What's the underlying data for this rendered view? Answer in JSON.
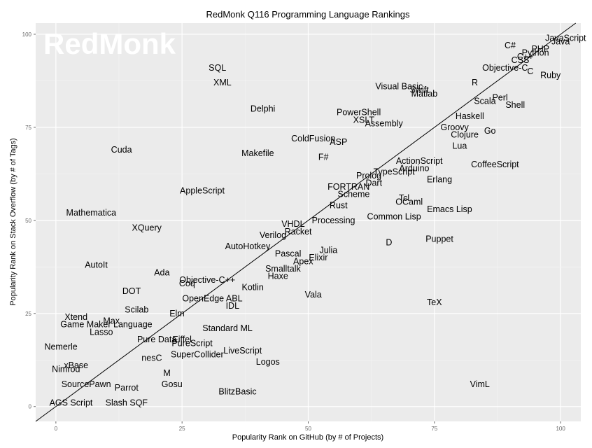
{
  "chart_data": {
    "type": "scatter",
    "title": "RedMonk Q116 Programming Language Rankings",
    "xlabel": "Popularity Rank on GitHub (by # of Projects)",
    "ylabel": "Popularity Rank on Stack Overflow (by # of Tags)",
    "watermark": "RedMonk",
    "xlim": [
      -4,
      104
    ],
    "ylim": [
      -4,
      103
    ],
    "xticks": [
      0,
      25,
      50,
      75,
      100
    ],
    "yticks": [
      0,
      25,
      50,
      75,
      100
    ],
    "xtick_labels": [
      "0",
      "25",
      "50",
      "75",
      "100"
    ],
    "ytick_labels": [
      "0",
      "25",
      "50",
      "75",
      "100"
    ],
    "grid": true,
    "reference_line": "diagonal",
    "colors": {
      "panel": "#ebebeb",
      "grid": "#ffffff",
      "text": "#000000",
      "tick": "#666666"
    },
    "points": [
      {
        "label": "JavaScript",
        "x": 101,
        "y": 99
      },
      {
        "label": "Java",
        "x": 100,
        "y": 98
      },
      {
        "label": "PHP",
        "x": 96,
        "y": 96
      },
      {
        "label": "Python",
        "x": 95,
        "y": 95
      },
      {
        "label": "C#",
        "x": 90,
        "y": 97
      },
      {
        "label": "C++",
        "x": 93,
        "y": 94
      },
      {
        "label": "CSS",
        "x": 92,
        "y": 93
      },
      {
        "label": "Objective-C",
        "x": 89,
        "y": 91
      },
      {
        "label": "C",
        "x": 94,
        "y": 90
      },
      {
        "label": "Ruby",
        "x": 98,
        "y": 89
      },
      {
        "label": "R",
        "x": 83,
        "y": 87
      },
      {
        "label": "Visual Basic",
        "x": 68,
        "y": 86
      },
      {
        "label": "Swift",
        "x": 72,
        "y": 85
      },
      {
        "label": "Matlab",
        "x": 73,
        "y": 84
      },
      {
        "label": "Perl",
        "x": 88,
        "y": 83
      },
      {
        "label": "Scala",
        "x": 85,
        "y": 82
      },
      {
        "label": "Shell",
        "x": 91,
        "y": 81
      },
      {
        "label": "SQL",
        "x": 32,
        "y": 91
      },
      {
        "label": "XML",
        "x": 33,
        "y": 87
      },
      {
        "label": "Delphi",
        "x": 41,
        "y": 80
      },
      {
        "label": "PowerShell",
        "x": 60,
        "y": 79
      },
      {
        "label": "Haskell",
        "x": 82,
        "y": 78
      },
      {
        "label": "XSLT",
        "x": 61,
        "y": 77
      },
      {
        "label": "Assembly",
        "x": 65,
        "y": 76
      },
      {
        "label": "Groovy",
        "x": 79,
        "y": 75
      },
      {
        "label": "Go",
        "x": 86,
        "y": 74
      },
      {
        "label": "Clojure",
        "x": 81,
        "y": 73
      },
      {
        "label": "ColdFusion",
        "x": 51,
        "y": 72
      },
      {
        "label": "ASP",
        "x": 56,
        "y": 71
      },
      {
        "label": "Lua",
        "x": 80,
        "y": 70
      },
      {
        "label": "Cuda",
        "x": 13,
        "y": 69
      },
      {
        "label": "Makefile",
        "x": 40,
        "y": 68
      },
      {
        "label": "F#",
        "x": 53,
        "y": 67
      },
      {
        "label": "ActionScript",
        "x": 72,
        "y": 66
      },
      {
        "label": "CoffeeScript",
        "x": 87,
        "y": 65
      },
      {
        "label": "Arduino",
        "x": 71,
        "y": 64
      },
      {
        "label": "TypeScript",
        "x": 67,
        "y": 63
      },
      {
        "label": "Prolog",
        "x": 62,
        "y": 62
      },
      {
        "label": "Erlang",
        "x": 76,
        "y": 61
      },
      {
        "label": "Dart",
        "x": 63,
        "y": 60
      },
      {
        "label": "FORTRAN",
        "x": 58,
        "y": 59
      },
      {
        "label": "AppleScript",
        "x": 29,
        "y": 58
      },
      {
        "label": "Scheme",
        "x": 59,
        "y": 57
      },
      {
        "label": "Tcl",
        "x": 69,
        "y": 56
      },
      {
        "label": "OCaml",
        "x": 70,
        "y": 55
      },
      {
        "label": "Rust",
        "x": 56,
        "y": 54
      },
      {
        "label": "Emacs Lisp",
        "x": 78,
        "y": 53
      },
      {
        "label": "Mathematica",
        "x": 7,
        "y": 52
      },
      {
        "label": "Common Lisp",
        "x": 67,
        "y": 51
      },
      {
        "label": "Processing",
        "x": 55,
        "y": 50
      },
      {
        "label": "VHDL",
        "x": 47,
        "y": 49
      },
      {
        "label": "XQuery",
        "x": 18,
        "y": 48
      },
      {
        "label": "Racket",
        "x": 48,
        "y": 47
      },
      {
        "label": "Verilog",
        "x": 43,
        "y": 46
      },
      {
        "label": "Puppet",
        "x": 76,
        "y": 45
      },
      {
        "label": "D",
        "x": 66,
        "y": 44
      },
      {
        "label": "AutoHotkey",
        "x": 38,
        "y": 43
      },
      {
        "label": "Julia",
        "x": 54,
        "y": 42
      },
      {
        "label": "Pascal",
        "x": 46,
        "y": 41
      },
      {
        "label": "Elixir",
        "x": 52,
        "y": 40
      },
      {
        "label": "Apex",
        "x": 49,
        "y": 39
      },
      {
        "label": "AutoIt",
        "x": 8,
        "y": 38
      },
      {
        "label": "Smalltalk",
        "x": 45,
        "y": 37
      },
      {
        "label": "Ada",
        "x": 21,
        "y": 36
      },
      {
        "label": "Haxe",
        "x": 44,
        "y": 35
      },
      {
        "label": "Objective-C++",
        "x": 30,
        "y": 34
      },
      {
        "label": "Coq",
        "x": 26,
        "y": 33
      },
      {
        "label": "Kotlin",
        "x": 39,
        "y": 32
      },
      {
        "label": "DOT",
        "x": 15,
        "y": 31
      },
      {
        "label": "Vala",
        "x": 51,
        "y": 30
      },
      {
        "label": "OpenEdge ABL",
        "x": 31,
        "y": 29
      },
      {
        "label": "TeX",
        "x": 75,
        "y": 28
      },
      {
        "label": "IDL",
        "x": 35,
        "y": 27
      },
      {
        "label": "Scilab",
        "x": 16,
        "y": 26
      },
      {
        "label": "Elm",
        "x": 24,
        "y": 25
      },
      {
        "label": "Xtend",
        "x": 4,
        "y": 24
      },
      {
        "label": "Max",
        "x": 11,
        "y": 23
      },
      {
        "label": "Game Maker Language",
        "x": 10,
        "y": 22
      },
      {
        "label": "Standard ML",
        "x": 34,
        "y": 21
      },
      {
        "label": "Lasso",
        "x": 9,
        "y": 20
      },
      {
        "label": "Pure Data",
        "x": 20,
        "y": 18
      },
      {
        "label": "Eiffel",
        "x": 25,
        "y": 18
      },
      {
        "label": "PureScript",
        "x": 27,
        "y": 17
      },
      {
        "label": "Nemerle",
        "x": 1,
        "y": 16
      },
      {
        "label": "LiveScript",
        "x": 37,
        "y": 15
      },
      {
        "label": "SuperCollider",
        "x": 28,
        "y": 14
      },
      {
        "label": "nesC",
        "x": 19,
        "y": 13
      },
      {
        "label": "Logos",
        "x": 42,
        "y": 12
      },
      {
        "label": "xBase",
        "x": 4,
        "y": 11
      },
      {
        "label": "Nimrod",
        "x": 2,
        "y": 10
      },
      {
        "label": "M",
        "x": 22,
        "y": 9
      },
      {
        "label": "SourcePawn",
        "x": 6,
        "y": 6
      },
      {
        "label": "Gosu",
        "x": 23,
        "y": 6
      },
      {
        "label": "VimL",
        "x": 84,
        "y": 6
      },
      {
        "label": "Parrot",
        "x": 14,
        "y": 5
      },
      {
        "label": "BlitzBasic",
        "x": 36,
        "y": 4
      },
      {
        "label": "AGS Script",
        "x": 3,
        "y": 1
      },
      {
        "label": "Slash SQF",
        "x": 14,
        "y": 1
      }
    ]
  }
}
